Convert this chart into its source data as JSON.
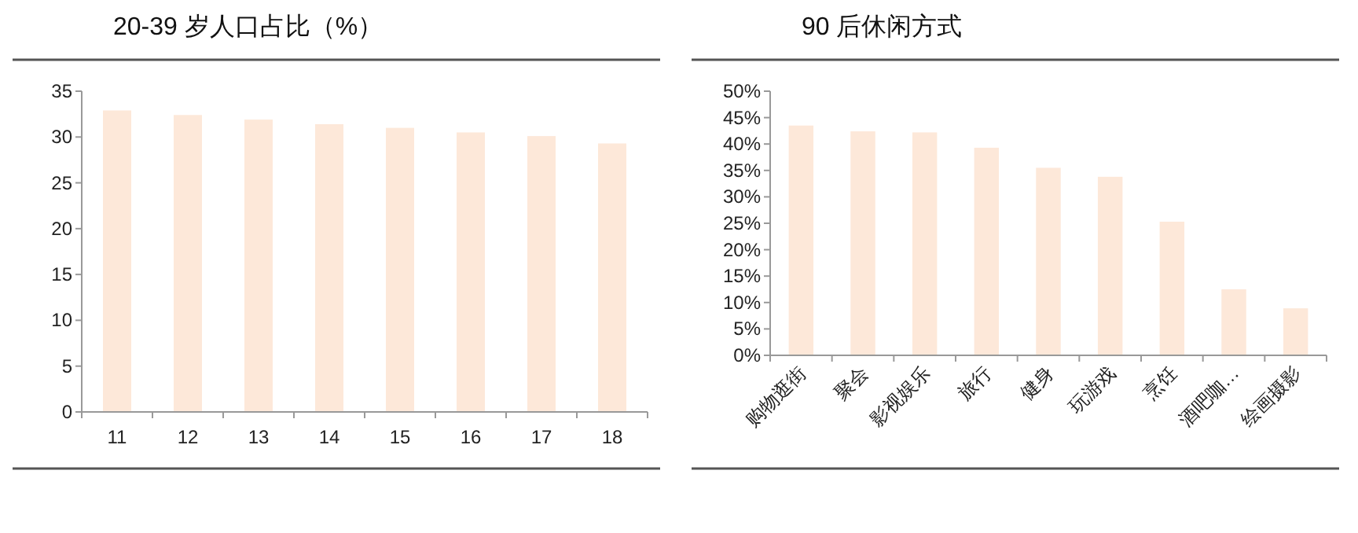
{
  "chart_data": [
    {
      "type": "bar",
      "title": "20-39 岁人口占比（%）",
      "categories": [
        "11",
        "12",
        "13",
        "14",
        "15",
        "16",
        "17",
        "18"
      ],
      "values": [
        32.9,
        32.4,
        31.9,
        31.4,
        31.0,
        30.5,
        30.1,
        29.3
      ],
      "color": "#fde8d9",
      "ylim": [
        0,
        35
      ],
      "yticks": [
        0,
        5,
        10,
        15,
        20,
        25,
        30,
        35
      ]
    },
    {
      "type": "bar",
      "title": "90 后休闲方式",
      "categories": [
        "购物逛街",
        "聚会",
        "影视娱乐",
        "旅行",
        "健身",
        "玩游戏",
        "烹饪",
        "酒吧咖…",
        "绘画摄影"
      ],
      "values": [
        43.5,
        42.4,
        42.2,
        39.3,
        35.5,
        33.8,
        25.3,
        12.5,
        8.9
      ],
      "color": "#fde8d9",
      "ylim": [
        0,
        50
      ],
      "yticks": [
        {
          "value": 0,
          "label": "0%"
        },
        {
          "value": 5,
          "label": "5%"
        },
        {
          "value": 10,
          "label": "10%"
        },
        {
          "value": 15,
          "label": "15%"
        },
        {
          "value": 20,
          "label": "20%"
        },
        {
          "value": 25,
          "label": "25%"
        },
        {
          "value": 30,
          "label": "30%"
        },
        {
          "value": 35,
          "label": "35%"
        },
        {
          "value": 40,
          "label": "40%"
        },
        {
          "value": 45,
          "label": "45%"
        },
        {
          "value": 50,
          "label": "50%"
        }
      ]
    }
  ]
}
